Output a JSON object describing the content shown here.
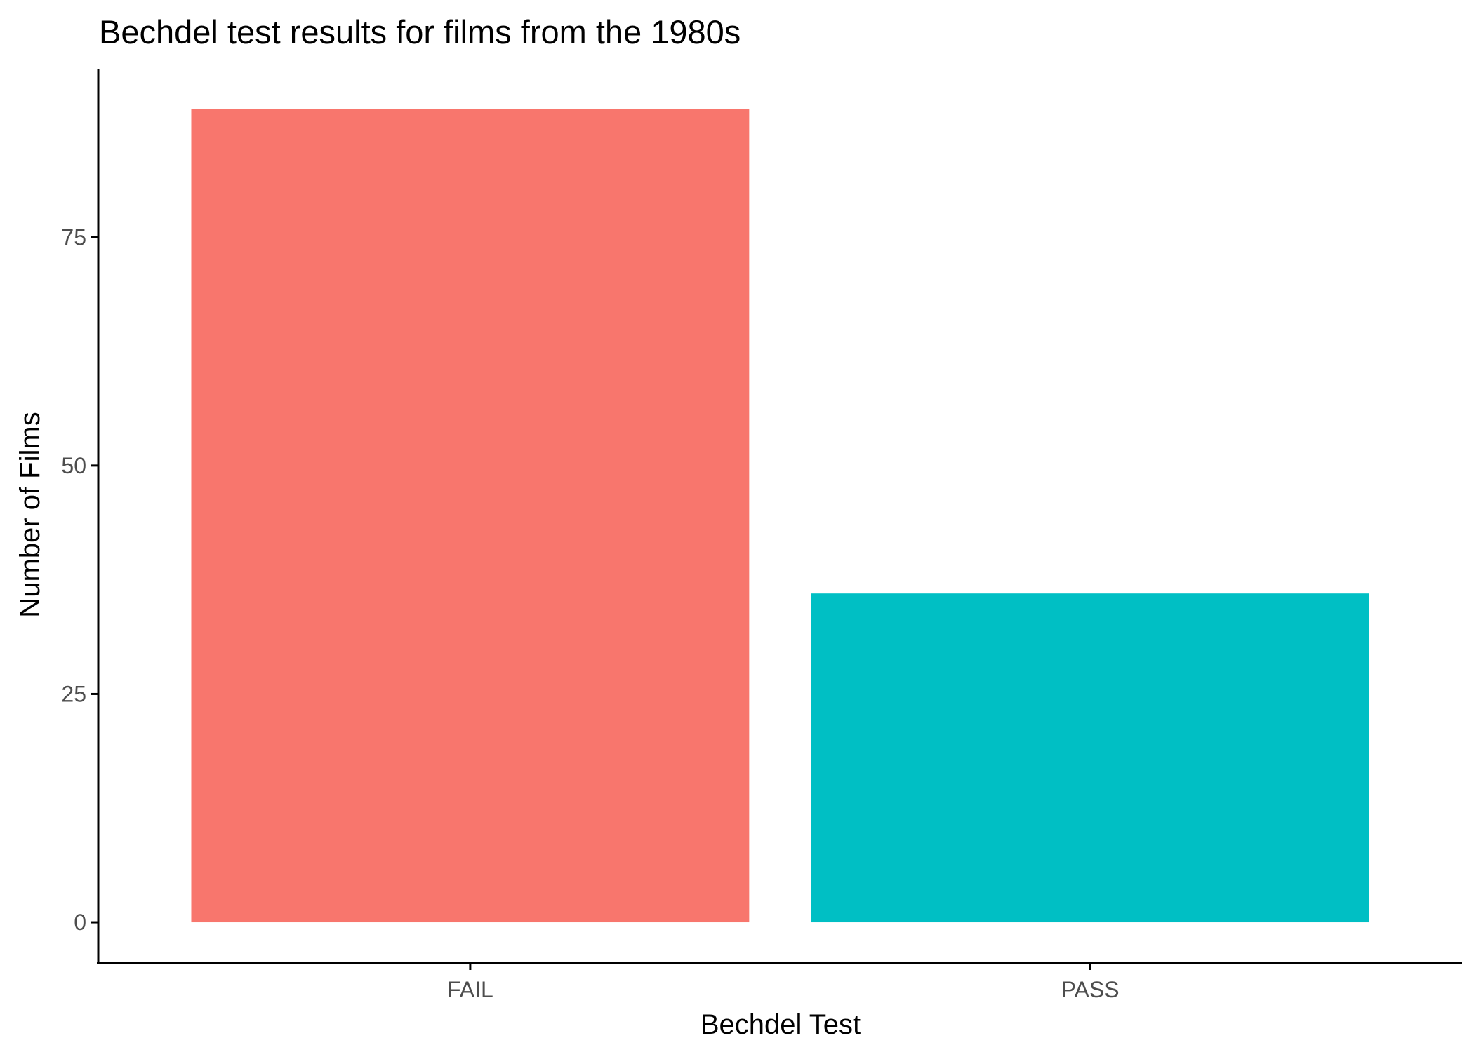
{
  "chart_data": {
    "type": "bar",
    "title": "Bechdel test results for films from the 1980s",
    "xlabel": "Bechdel Test",
    "ylabel": "Number of Films",
    "categories": [
      "FAIL",
      "PASS"
    ],
    "values": [
      89,
      36
    ],
    "colors": [
      "#F8766D",
      "#00BFC4"
    ],
    "yticks": [
      0,
      25,
      50,
      75
    ],
    "ylim": [
      -4.45,
      93.45
    ],
    "grid": false,
    "legend": "none"
  }
}
